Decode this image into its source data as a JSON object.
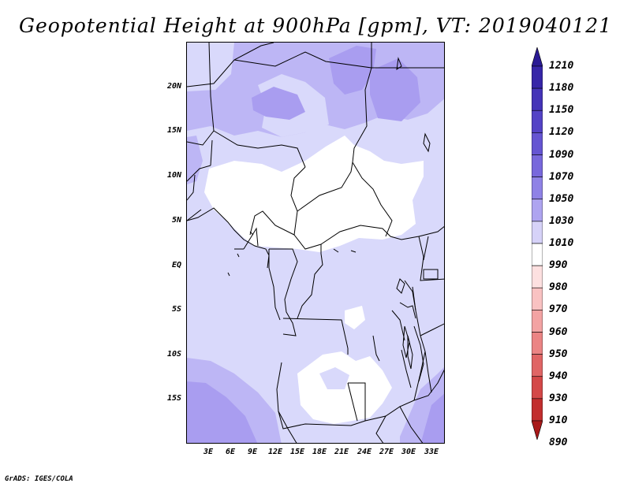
{
  "title": "Geopotential Height at 900hPa [gpm], VT: 2019040121",
  "credit": "GrADS: IGES/COLA",
  "y_axis_labels": [
    "20N",
    "15N",
    "10N",
    "5N",
    "EQ",
    "5S",
    "10S",
    "15S"
  ],
  "x_axis_labels": [
    "3E",
    "6E",
    "9E",
    "12E",
    "15E",
    "18E",
    "21E",
    "24E",
    "27E",
    "30E",
    "33E"
  ],
  "colorbar": {
    "levels": [
      "1210",
      "1180",
      "1150",
      "1120",
      "1090",
      "1070",
      "1050",
      "1030",
      "1010",
      "990",
      "980",
      "970",
      "960",
      "950",
      "940",
      "930",
      "910",
      "890"
    ],
    "colors": [
      "#2a1a94",
      "#3726a8",
      "#4534b8",
      "#5443c6",
      "#6555d2",
      "#7868dc",
      "#8f82e6",
      "#aea4f0",
      "#d6d2f8",
      "#ffffff",
      "#fde0e0",
      "#f9c2c2",
      "#f3a3a3",
      "#eb8484",
      "#e06565",
      "#d44848",
      "#c22e2e",
      "#a81a1a"
    ]
  },
  "field_colors": {
    "light": "#d9d9fb",
    "medium": "#bdb6f5",
    "dark": "#a99df0",
    "white": "#ffffff"
  }
}
